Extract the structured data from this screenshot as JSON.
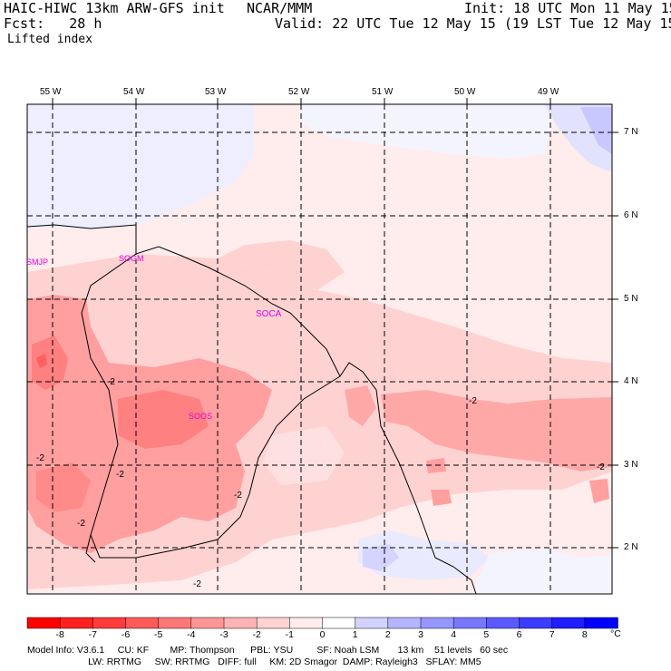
{
  "header": {
    "model": "HAIC-HIWC 13km ARW-GFS init",
    "org": "NCAR/MMM",
    "init": "Init: 18 UTC Mon 11 May 15",
    "fcst": "Fcst:   28 h",
    "valid": "Valid: 22 UTC Tue 12 May 15 (19 LST Tue 12 May 15)",
    "field": "Lifted index"
  },
  "lon_labels": [
    "55 W",
    "54 W",
    "53 W",
    "52 W",
    "51 W",
    "50 W",
    "49 W"
  ],
  "lat_labels": [
    "7 N",
    "6 N",
    "5 N",
    "4 N",
    "3 N",
    "2 N"
  ],
  "stations": [
    "SMJP",
    "SOGM",
    "SOCA",
    "SOOS"
  ],
  "contour_labels": [
    "-2",
    "-2",
    "-2",
    "-2",
    "-2",
    "-2",
    "-2",
    "-2"
  ],
  "colorbar": {
    "labels": [
      "-8",
      "-7",
      "-6",
      "-5",
      "-4",
      "-3",
      "-2",
      "-1",
      "0",
      "1",
      "2",
      "3",
      "4",
      "5",
      "6",
      "7",
      "8"
    ],
    "unit": "°C",
    "colors": [
      "#ff0000",
      "#ff2020",
      "#ff3c3c",
      "#ff5a5a",
      "#ff7878",
      "#ff9696",
      "#ffb4b4",
      "#ffd2d2",
      "#ffecec",
      "#ffffff",
      "#d2d2ff",
      "#b4b4ff",
      "#9696ff",
      "#7878ff",
      "#5a5aff",
      "#3c3cff",
      "#1e1eff",
      "#0000ff"
    ]
  },
  "footer": {
    "line1": "Model Info: V3.6.1     CU: KF        MP: Thompson      PBL: YSU         SF: Noah LSM       13 km    51 levels   60 sec",
    "line2": "                       LW: RRTMG     SW: RRTMG   DIFF: full     KM: 2D Smagor  DAMP: Rayleigh3   SFLAY: MM5"
  }
}
